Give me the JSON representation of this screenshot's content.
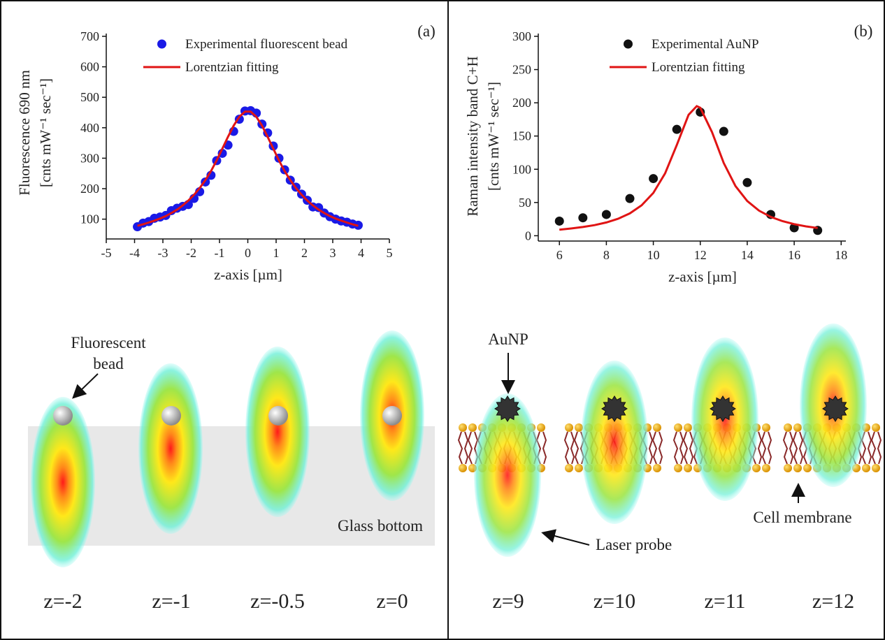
{
  "chart_data": [
    {
      "type": "scatter",
      "panel_label": "(a)",
      "ylabel": [
        "Fluorescence 690 nm",
        "[cnts mW⁻¹ sec⁻¹]"
      ],
      "xlabel": "z-axis [µm]",
      "xlim": [
        -5,
        5
      ],
      "xticks": [
        -5,
        -4,
        -3,
        -2,
        -1,
        0,
        1,
        2,
        3,
        4,
        5
      ],
      "ylim": [
        35,
        700
      ],
      "yticks": [
        100,
        200,
        300,
        400,
        500,
        600,
        700
      ],
      "series": [
        {
          "name": "Experimental fluorescent bead",
          "color": "#1a1ae6",
          "style": "markers",
          "x": [
            -3.9,
            -3.7,
            -3.5,
            -3.3,
            -3.1,
            -2.9,
            -2.7,
            -2.5,
            -2.3,
            -2.1,
            -1.9,
            -1.7,
            -1.5,
            -1.3,
            -1.1,
            -0.9,
            -0.7,
            -0.5,
            -0.3,
            -0.1,
            0.1,
            0.3,
            0.5,
            0.7,
            0.9,
            1.1,
            1.3,
            1.5,
            1.7,
            1.9,
            2.1,
            2.3,
            2.5,
            2.7,
            2.9,
            3.1,
            3.3,
            3.5,
            3.7,
            3.9
          ],
          "values": [
            75,
            87,
            92,
            103,
            107,
            112,
            128,
            136,
            142,
            148,
            168,
            190,
            222,
            244,
            292,
            316,
            343,
            388,
            428,
            455,
            456,
            448,
            412,
            383,
            340,
            300,
            262,
            228,
            205,
            182,
            162,
            140,
            138,
            120,
            108,
            100,
            94,
            90,
            84,
            80
          ]
        },
        {
          "name": "Lorentzian fitting",
          "color": "#e01414",
          "style": "line",
          "x": [
            -3.9,
            -3.7,
            -3.5,
            -3.3,
            -3.1,
            -2.9,
            -2.7,
            -2.5,
            -2.3,
            -2.1,
            -1.9,
            -1.7,
            -1.5,
            -1.3,
            -1.1,
            -0.9,
            -0.7,
            -0.5,
            -0.3,
            -0.1,
            0.1,
            0.3,
            0.5,
            0.7,
            0.9,
            1.1,
            1.3,
            1.5,
            1.7,
            1.9,
            2.1,
            2.3,
            2.5,
            2.7,
            2.9,
            3.1,
            3.3,
            3.5,
            3.7,
            3.9
          ],
          "values": [
            78,
            83,
            89,
            95,
            102,
            110,
            120,
            131,
            145,
            161,
            180,
            202,
            228,
            258,
            293,
            331,
            370,
            407,
            436,
            453,
            453,
            436,
            407,
            370,
            331,
            293,
            258,
            228,
            202,
            180,
            161,
            145,
            131,
            120,
            110,
            102,
            95,
            89,
            83,
            78
          ]
        }
      ]
    },
    {
      "type": "scatter",
      "panel_label": "(b)",
      "ylabel": [
        "Raman intensity band C+H",
        "[cnts mW⁻¹ sec⁻¹]"
      ],
      "xlabel": "z-axis [µm]",
      "xlim": [
        5.1,
        18.2
      ],
      "xticks": [
        6,
        8,
        10,
        12,
        14,
        16,
        18
      ],
      "ylim": [
        -8,
        300
      ],
      "yticks": [
        0,
        50,
        100,
        150,
        200,
        250,
        300
      ],
      "series": [
        {
          "name": "Experimental AuNP",
          "color": "#111111",
          "style": "markers",
          "x": [
            6,
            7,
            8,
            9,
            10,
            11,
            12,
            13,
            14,
            15,
            16,
            17
          ],
          "values": [
            22,
            27,
            32,
            56,
            86,
            160,
            186,
            157,
            80,
            32,
            12,
            8
          ]
        },
        {
          "name": "Lorentzian fitting",
          "color": "#e01414",
          "style": "line",
          "x": [
            6,
            6.5,
            7,
            7.5,
            8,
            8.5,
            9,
            9.5,
            10,
            10.5,
            11,
            11.5,
            11.85,
            12,
            12.5,
            13,
            13.5,
            14,
            14.5,
            15,
            15.5,
            16,
            16.5,
            17
          ],
          "values": [
            9,
            10.9,
            13.1,
            16,
            20,
            25.5,
            33.6,
            45.7,
            64.4,
            93.8,
            136.6,
            181.9,
            195,
            192.5,
            156,
            109.4,
            74.7,
            52.2,
            37.8,
            28.4,
            22,
            17.4,
            14.1,
            11.7
          ]
        }
      ]
    }
  ],
  "illustration_a": {
    "bead_label": [
      "Fluorescent",
      "bead"
    ],
    "glass_label": "Glass bottom",
    "positions": [
      "z=-2",
      "z=-1",
      "z=-0.5",
      "z=0"
    ]
  },
  "illustration_b": {
    "particle_label": "AuNP",
    "probe_label": "Laser probe",
    "membrane_label": "Cell membrane",
    "positions": [
      "z=9",
      "z=10",
      "z=11",
      "z=12"
    ]
  }
}
